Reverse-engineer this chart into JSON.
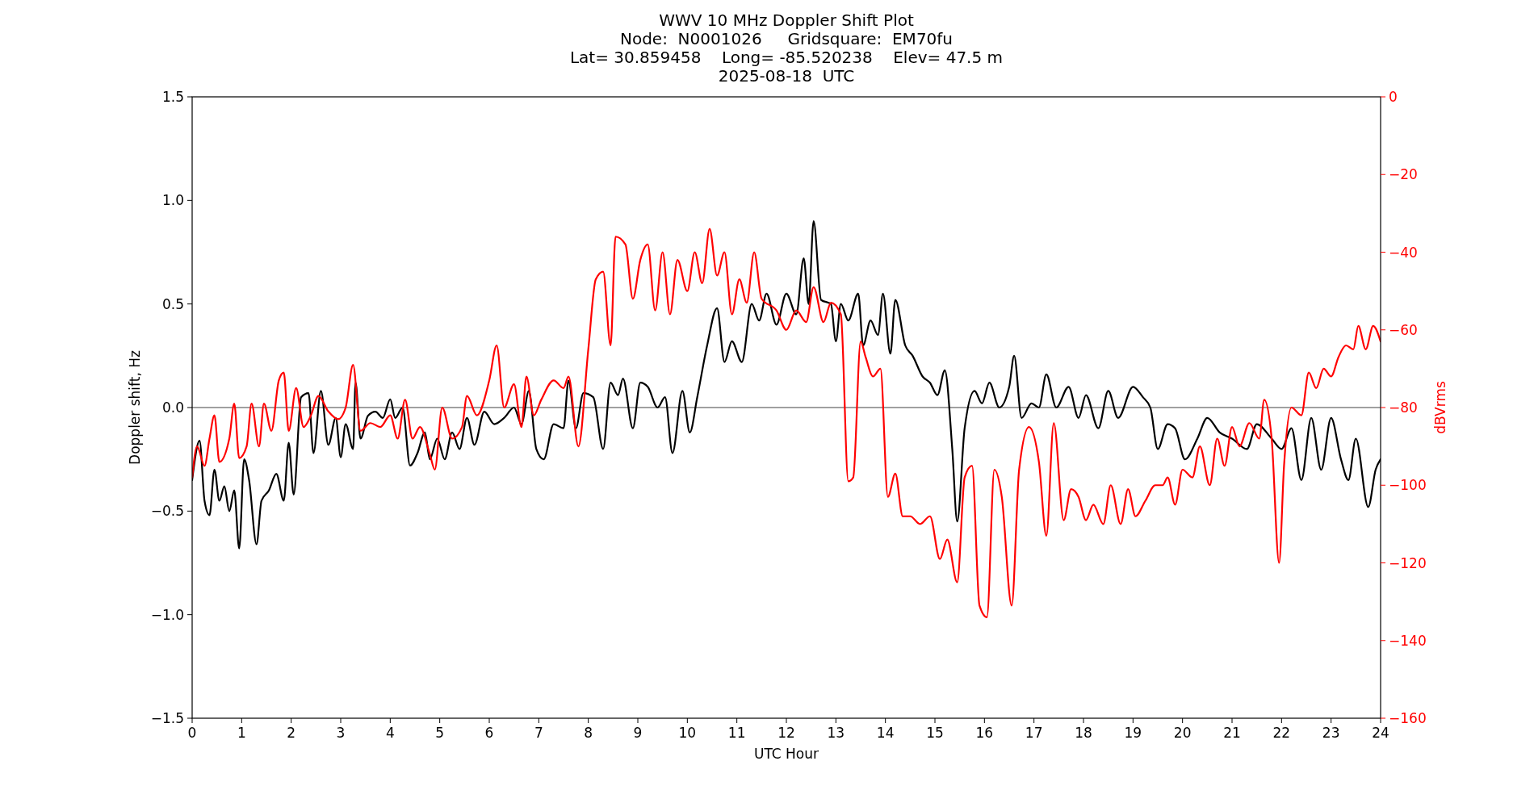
{
  "chart_data": {
    "type": "line",
    "title": "WWV 10 MHz Doppler Shift Plot\nNode:  N0001026     Gridsquare:  EM70fu\nLat= 30.859458    Long= -85.520238    Elev= 47.5 m\n2025-08-18  UTC",
    "xlabel": "UTC Hour",
    "ylabel": "Doppler shift, Hz",
    "y2label": "dBVrms",
    "xlim": [
      0,
      24
    ],
    "xticks": [
      0,
      1,
      2,
      3,
      4,
      5,
      6,
      7,
      8,
      9,
      10,
      11,
      12,
      13,
      14,
      15,
      16,
      17,
      18,
      19,
      20,
      21,
      22,
      23,
      24
    ],
    "ylim": [
      -1.5,
      1.5
    ],
    "yticks": [
      {
        "value": -1.5,
        "label": "−1.5"
      },
      {
        "value": -1,
        "label": "−1.0"
      },
      {
        "value": -0.5,
        "label": "−0.5"
      },
      {
        "value": 0,
        "label": "0.0"
      },
      {
        "value": 0.5,
        "label": "0.5"
      },
      {
        "value": 1,
        "label": "1.0"
      },
      {
        "value": 1.5,
        "label": "1.5"
      }
    ],
    "y2lim": [
      -160,
      0
    ],
    "y2ticks": [
      {
        "value": -160,
        "label": "−160"
      },
      {
        "value": -140,
        "label": "−140"
      },
      {
        "value": -120,
        "label": "−120"
      },
      {
        "value": -100,
        "label": "−100"
      },
      {
        "value": -80,
        "label": "−80"
      },
      {
        "value": -60,
        "label": "−60"
      },
      {
        "value": -40,
        "label": "−40"
      },
      {
        "value": -20,
        "label": "−20"
      },
      0
    ],
    "grid": false,
    "marker": "none",
    "line_style": "solid",
    "ref_lines": [
      {
        "axis": "y",
        "value": 0,
        "label": null,
        "color": "#808080"
      }
    ],
    "series": [
      {
        "color": "#000000",
        "x": [
          0,
          0.15,
          0.25,
          0.35,
          0.45,
          0.55,
          0.65,
          0.75,
          0.85,
          0.95,
          1.05,
          1.15,
          1.3,
          1.4,
          1.55,
          1.7,
          1.85,
          1.95,
          2.05,
          2.2,
          2.35,
          2.45,
          2.6,
          2.75,
          2.9,
          3.0,
          3.1,
          3.25,
          3.3,
          3.4,
          3.55,
          3.7,
          3.85,
          4.0,
          4.1,
          4.25,
          4.4,
          4.55,
          4.7,
          4.8,
          4.95,
          5.1,
          5.25,
          5.4,
          5.55,
          5.7,
          5.9,
          6.1,
          6.3,
          6.5,
          6.65,
          6.8,
          6.95,
          7.1,
          7.3,
          7.5,
          7.6,
          7.75,
          7.9,
          8.1,
          8.3,
          8.45,
          8.6,
          8.7,
          8.9,
          9.05,
          9.2,
          9.4,
          9.55,
          9.7,
          9.9,
          10.05,
          10.2,
          10.4,
          10.6,
          10.75,
          10.9,
          11.1,
          11.3,
          11.45,
          11.6,
          11.8,
          12.0,
          12.2,
          12.35,
          12.45,
          12.55,
          12.7,
          12.9,
          13.0,
          13.1,
          13.25,
          13.45,
          13.55,
          13.7,
          13.85,
          13.95,
          14.1,
          14.2,
          14.4,
          14.55,
          14.75,
          14.9,
          15.05,
          15.2,
          15.35,
          15.45,
          15.6,
          15.8,
          15.95,
          16.1,
          16.3,
          16.5,
          16.6,
          16.75,
          16.95,
          17.1,
          17.25,
          17.45,
          17.7,
          17.9,
          18.05,
          18.3,
          18.5,
          18.7,
          19.0,
          19.2,
          19.35,
          19.5,
          19.7,
          19.85,
          20.05,
          20.3,
          20.5,
          20.75,
          21.0,
          21.3,
          21.5,
          21.8,
          22.0,
          22.2,
          22.4,
          22.6,
          22.8,
          23.0,
          23.2,
          23.35,
          23.5,
          23.75,
          23.9,
          24
        ],
        "values": [
          -0.35,
          -0.16,
          -0.45,
          -0.52,
          -0.3,
          -0.45,
          -0.38,
          -0.5,
          -0.4,
          -0.68,
          -0.25,
          -0.35,
          -0.66,
          -0.45,
          -0.4,
          -0.32,
          -0.45,
          -0.17,
          -0.42,
          0.05,
          0.07,
          -0.22,
          0.08,
          -0.18,
          -0.05,
          -0.24,
          -0.08,
          -0.2,
          0.12,
          -0.15,
          -0.04,
          -0.02,
          -0.05,
          0.04,
          -0.05,
          0.0,
          -0.28,
          -0.22,
          -0.12,
          -0.25,
          -0.15,
          -0.25,
          -0.12,
          -0.2,
          -0.05,
          -0.18,
          -0.02,
          -0.08,
          -0.05,
          0.0,
          -0.08,
          0.08,
          -0.2,
          -0.25,
          -0.08,
          -0.1,
          0.13,
          -0.1,
          0.07,
          0.05,
          -0.2,
          0.12,
          0.06,
          0.14,
          -0.1,
          0.12,
          0.1,
          0.0,
          0.05,
          -0.22,
          0.08,
          -0.12,
          0.05,
          0.3,
          0.48,
          0.22,
          0.32,
          0.22,
          0.5,
          0.42,
          0.55,
          0.4,
          0.55,
          0.45,
          0.72,
          0.5,
          0.9,
          0.52,
          0.5,
          0.32,
          0.5,
          0.42,
          0.55,
          0.3,
          0.42,
          0.35,
          0.55,
          0.26,
          0.52,
          0.3,
          0.25,
          0.15,
          0.12,
          0.06,
          0.18,
          -0.2,
          -0.55,
          -0.1,
          0.08,
          0.02,
          0.12,
          0.0,
          0.1,
          0.25,
          -0.05,
          0.02,
          0.0,
          0.16,
          0.0,
          0.1,
          -0.05,
          0.06,
          -0.1,
          0.08,
          -0.05,
          0.1,
          0.05,
          0.0,
          -0.2,
          -0.08,
          -0.1,
          -0.25,
          -0.15,
          -0.05,
          -0.12,
          -0.15,
          -0.2,
          -0.08,
          -0.15,
          -0.2,
          -0.1,
          -0.35,
          -0.05,
          -0.3,
          -0.05,
          -0.25,
          -0.35,
          -0.15,
          -0.48,
          -0.3,
          -0.25
        ]
      },
      {
        "color": "#ff0000",
        "axis": "y2",
        "x": [
          0,
          0.1,
          0.25,
          0.35,
          0.45,
          0.55,
          0.75,
          0.85,
          0.95,
          1.1,
          1.2,
          1.35,
          1.45,
          1.6,
          1.75,
          1.85,
          1.95,
          2.1,
          2.25,
          2.4,
          2.55,
          2.75,
          2.95,
          3.1,
          3.25,
          3.4,
          3.6,
          3.8,
          4.0,
          4.15,
          4.3,
          4.45,
          4.6,
          4.8,
          4.9,
          5.05,
          5.25,
          5.45,
          5.55,
          5.75,
          6.0,
          6.15,
          6.3,
          6.5,
          6.65,
          6.75,
          6.9,
          7.05,
          7.3,
          7.5,
          7.6,
          7.8,
          8.0,
          8.15,
          8.3,
          8.45,
          8.55,
          8.75,
          8.9,
          9.05,
          9.2,
          9.35,
          9.5,
          9.65,
          9.8,
          10.0,
          10.15,
          10.3,
          10.45,
          10.6,
          10.75,
          10.9,
          11.05,
          11.2,
          11.35,
          11.5,
          11.8,
          12.0,
          12.2,
          12.4,
          12.55,
          12.75,
          12.9,
          13.1,
          13.25,
          13.35,
          13.5,
          13.6,
          13.75,
          13.9,
          14.05,
          14.2,
          14.35,
          14.5,
          14.7,
          14.9,
          15.1,
          15.25,
          15.45,
          15.6,
          15.75,
          15.9,
          16.05,
          16.2,
          16.35,
          16.55,
          16.7,
          16.9,
          17.1,
          17.25,
          17.4,
          17.6,
          17.75,
          17.9,
          18.05,
          18.2,
          18.4,
          18.55,
          18.75,
          18.9,
          19.05,
          19.25,
          19.45,
          19.6,
          19.7,
          19.85,
          20.0,
          20.2,
          20.35,
          20.55,
          20.7,
          20.85,
          21.0,
          21.15,
          21.35,
          21.55,
          21.65,
          21.8,
          21.95,
          22.05,
          22.2,
          22.4,
          22.55,
          22.7,
          22.85,
          23.0,
          23.15,
          23.3,
          23.45,
          23.55,
          23.7,
          23.85,
          24
        ],
        "values": [
          -98,
          -90,
          -95,
          -88,
          -82,
          -94,
          -88,
          -79,
          -93,
          -90,
          -79,
          -90,
          -79,
          -86,
          -73,
          -71,
          -86,
          -75,
          -85,
          -82,
          -77,
          -81,
          -83,
          -80,
          -69,
          -86,
          -84,
          -85,
          -82,
          -88,
          -78,
          -88,
          -85,
          -92,
          -96,
          -80,
          -88,
          -85,
          -77,
          -82,
          -73,
          -64,
          -80,
          -74,
          -85,
          -72,
          -82,
          -78,
          -73,
          -75,
          -72,
          -90,
          -65,
          -47,
          -45,
          -64,
          -36,
          -38,
          -52,
          -42,
          -38,
          -55,
          -40,
          -56,
          -42,
          -50,
          -40,
          -48,
          -34,
          -46,
          -40,
          -56,
          -47,
          -53,
          -40,
          -52,
          -55,
          -60,
          -55,
          -58,
          -49,
          -58,
          -53,
          -56,
          -99,
          -98,
          -63,
          -67,
          -72,
          -70,
          -103,
          -97,
          -108,
          -108,
          -110,
          -108,
          -119,
          -114,
          -125,
          -98,
          -95,
          -131,
          -134,
          -96,
          -103,
          -131,
          -96,
          -85,
          -94,
          -113,
          -84,
          -109,
          -101,
          -103,
          -109,
          -105,
          -110,
          -100,
          -110,
          -101,
          -108,
          -104,
          -100,
          -100,
          -98,
          -105,
          -96,
          -98,
          -90,
          -100,
          -88,
          -95,
          -85,
          -90,
          -84,
          -88,
          -78,
          -88,
          -120,
          -95,
          -80,
          -82,
          -71,
          -75,
          -70,
          -72,
          -67,
          -64,
          -65,
          -59,
          -65,
          -59,
          -63
        ]
      }
    ]
  }
}
